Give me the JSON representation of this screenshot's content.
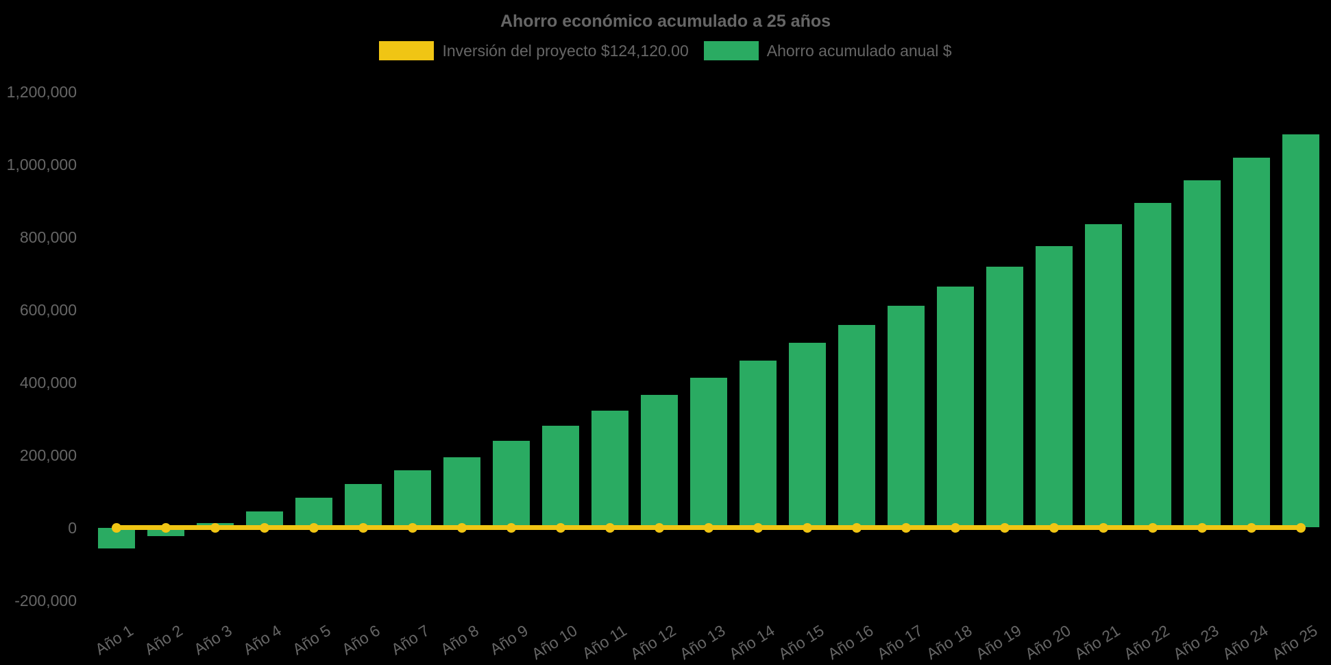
{
  "chart_data": {
    "type": "bar",
    "title": "Ahorro económico acumulado a 25 años",
    "categories": [
      "Año 1",
      "Año 2",
      "Año 3",
      "Año 4",
      "Año 5",
      "Año 6",
      "Año 7",
      "Año 8",
      "Año 9",
      "Año 10",
      "Año 11",
      "Año 12",
      "Año 13",
      "Año 14",
      "Año 15",
      "Año 16",
      "Año 17",
      "Año 18",
      "Año 19",
      "Año 20",
      "Año 21",
      "Año 22",
      "Año 23",
      "Año 24",
      "Año 25"
    ],
    "series": [
      {
        "name": "Inversión del proyecto $124,120.00",
        "type": "line",
        "color": "#f0c514",
        "values": [
          0,
          0,
          0,
          0,
          0,
          0,
          0,
          0,
          0,
          0,
          0,
          0,
          0,
          0,
          0,
          0,
          0,
          0,
          0,
          0,
          0,
          0,
          0,
          0,
          0
        ]
      },
      {
        "name": "Ahorro acumulado anual $",
        "type": "bar",
        "color": "#2aab62",
        "values": [
          -57000,
          -24000,
          12000,
          44000,
          82000,
          120000,
          157000,
          194000,
          238000,
          280000,
          321000,
          366000,
          413000,
          459000,
          508000,
          558000,
          610000,
          664000,
          718000,
          775000,
          834000,
          894000,
          955000,
          1018000,
          1083000
        ]
      }
    ],
    "ylim": [
      -200000,
      1200000
    ],
    "yticks": [
      {
        "value": -200000,
        "label": "-200,000"
      },
      {
        "value": 0,
        "label": "0"
      },
      {
        "value": 200000,
        "label": "200,000"
      },
      {
        "value": 400000,
        "label": "400,000"
      },
      {
        "value": 600000,
        "label": "600,000"
      },
      {
        "value": 800000,
        "label": "800,000"
      },
      {
        "value": 1000000,
        "label": "1,000,000"
      },
      {
        "value": 1200000,
        "label": "1,200,000"
      }
    ],
    "grid": false,
    "legend_position": "top",
    "background": "#000000",
    "text_color": "#666666"
  }
}
